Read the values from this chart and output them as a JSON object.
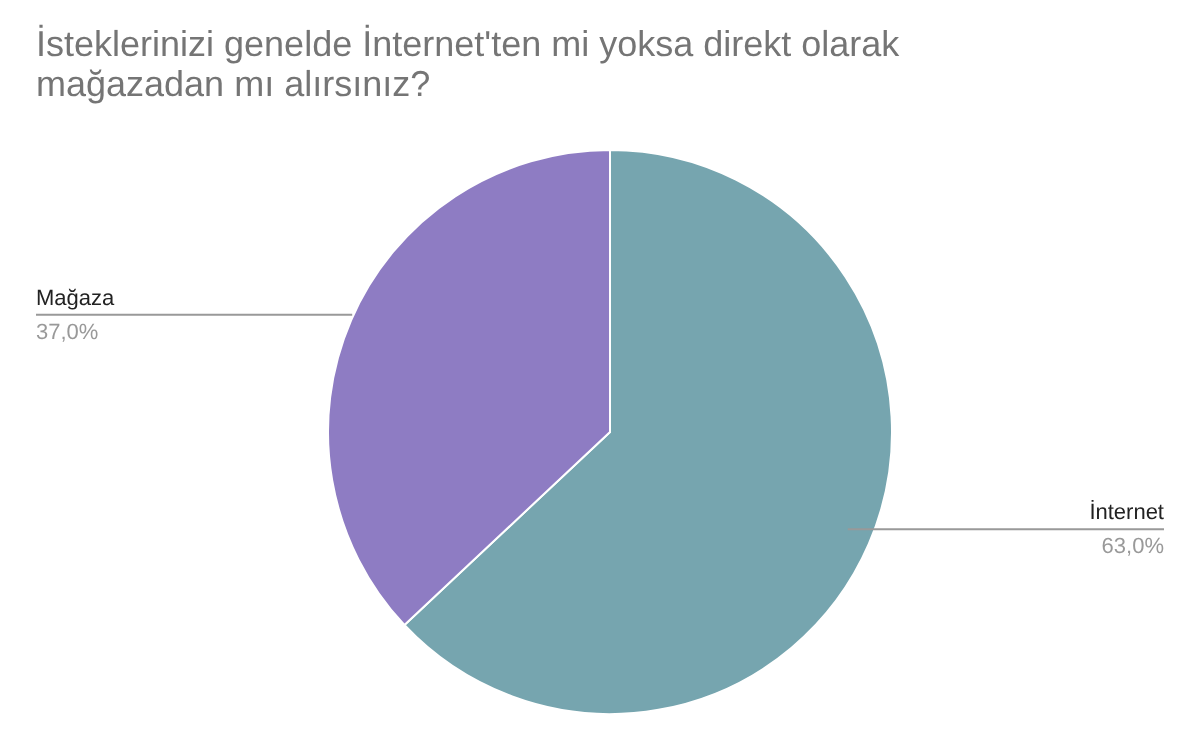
{
  "chart_data": {
    "type": "pie",
    "title": "İsteklerinizi genelde İnternet'ten mi yoksa direkt olarak mağazadan mı alırsınız?",
    "categories": [
      "İnternet",
      "Mağaza"
    ],
    "values": [
      63,
      37
    ],
    "colors": [
      "#76a5af",
      "#8e7cc3"
    ],
    "value_labels": [
      "63,0%",
      "37,0%"
    ]
  }
}
